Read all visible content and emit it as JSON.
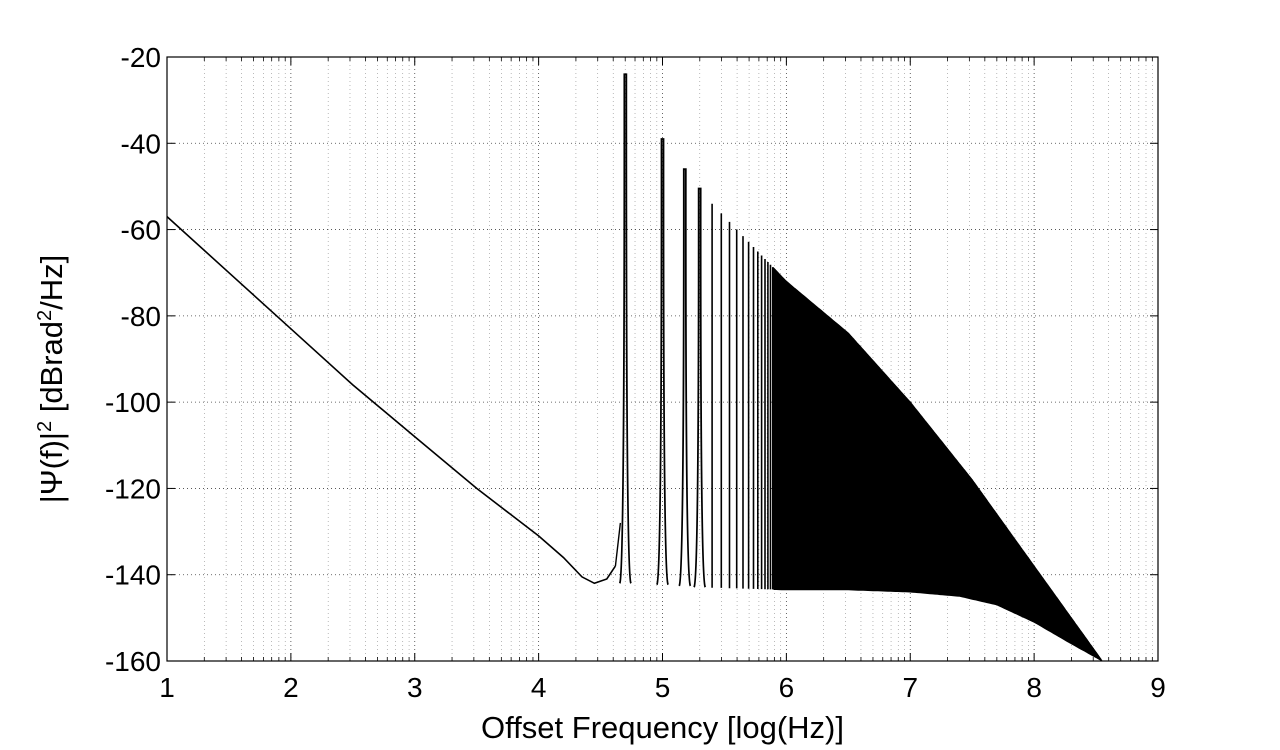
{
  "chart_data": {
    "type": "line",
    "title": "",
    "xlabel": "Offset Frequency [log(Hz)]",
    "ylabel": {
      "pre": "|Ψ(f)|",
      "sup1": "2",
      "mid": " [dBrad",
      "sup2": "2",
      "post": "/Hz]"
    },
    "xlim": [
      1,
      9
    ],
    "ylim": [
      -160,
      -20
    ],
    "xticks": [
      1,
      2,
      3,
      4,
      5,
      6,
      7,
      8,
      9
    ],
    "yticks": [
      -20,
      -40,
      -60,
      -80,
      -100,
      -120,
      -140,
      -160
    ],
    "grid": true,
    "minor_grid": "log-decade (between integer log(Hz) ticks)",
    "series": [
      {
        "color": "#000000",
        "baseline": {
          "x": [
            1.0,
            1.5,
            2.0,
            2.5,
            3.0,
            3.5,
            4.0,
            4.2,
            4.35,
            4.45,
            4.55,
            4.62
          ],
          "y": [
            -57,
            -70,
            -83,
            -96,
            -108,
            -120,
            -131,
            -136,
            -140.5,
            -142,
            -141,
            -138
          ]
        },
        "peaks": [
          {
            "x": 4.7,
            "y": -24
          },
          {
            "x": 5.0,
            "y": -39
          },
          {
            "x": 5.18,
            "y": -46
          },
          {
            "x": 5.3,
            "y": -50.5
          }
        ],
        "dense_region": {
          "x_start": 5.4,
          "floor": {
            "x": [
              5.4,
              6.0,
              6.5,
              7.0,
              7.4,
              7.7,
              8.0,
              8.3,
              8.55
            ],
            "y": [
              -143,
              -143.5,
              -143.5,
              -144,
              -145,
              -147,
              -151,
              -156,
              -160
            ]
          },
          "envelope": {
            "x": [
              5.4,
              5.5,
              5.6,
              5.7,
              5.8,
              5.9,
              6.0,
              6.5,
              7.0,
              7.5,
              8.0,
              8.3,
              8.55
            ],
            "y": [
              -54,
              -57,
              -60,
              -63,
              -66,
              -69,
              -72,
              -84,
              -100,
              -118,
              -138,
              -150,
              -160
            ]
          }
        }
      }
    ]
  }
}
